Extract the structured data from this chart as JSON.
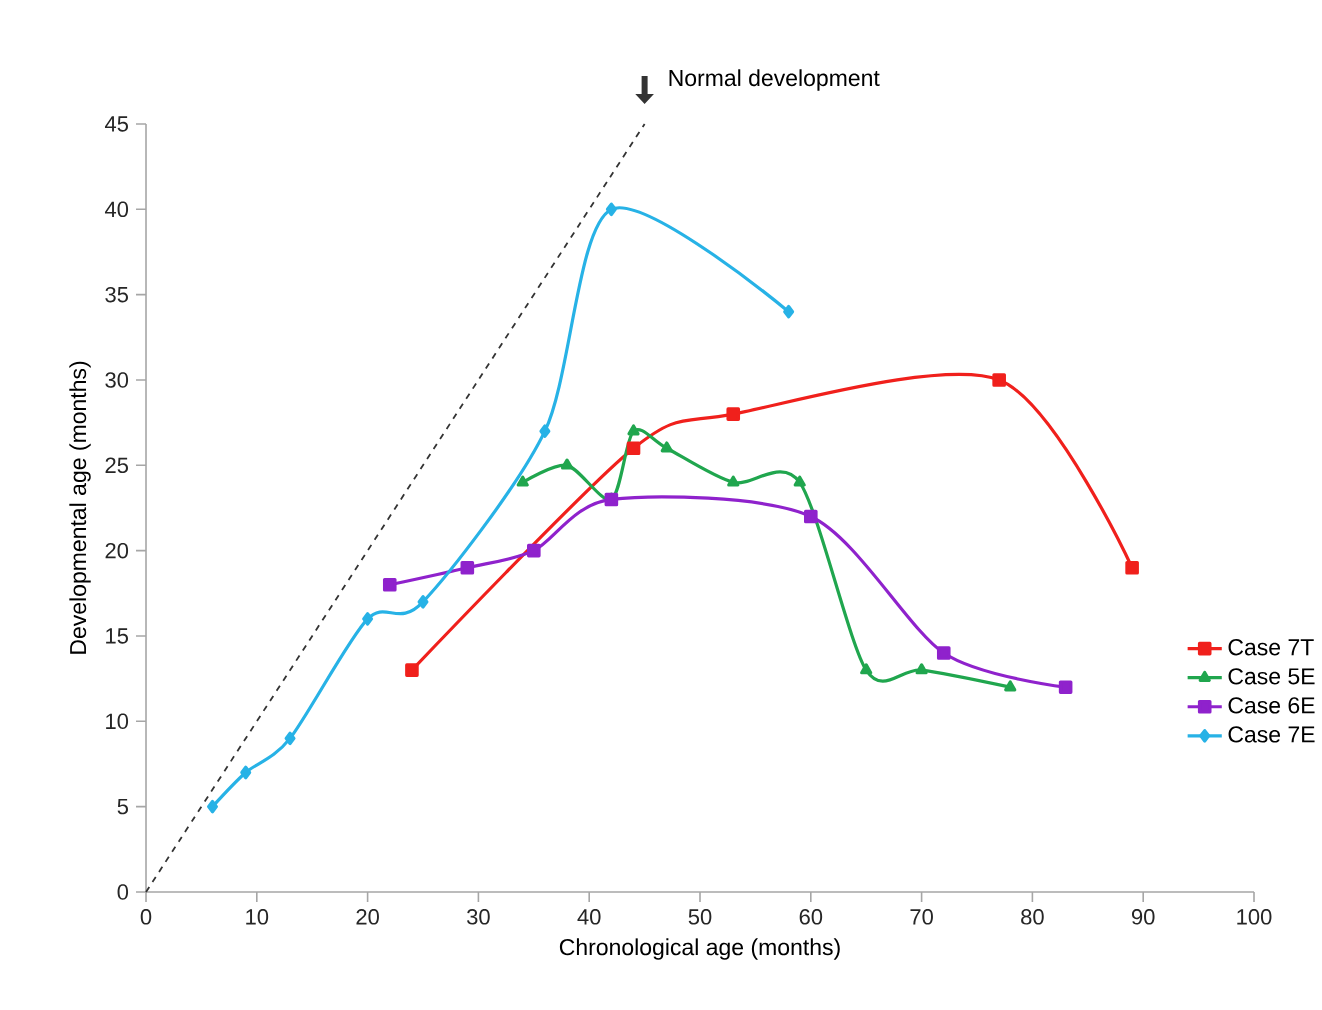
{
  "chart_data": {
    "type": "line",
    "xlabel": "Chronological age (months)",
    "ylabel": "Developmental age (months)",
    "xlim": [
      0,
      100
    ],
    "ylim": [
      0,
      45
    ],
    "xticks": [
      0,
      10,
      20,
      30,
      40,
      50,
      60,
      70,
      80,
      90,
      100
    ],
    "yticks": [
      0,
      5,
      10,
      15,
      20,
      25,
      30,
      35,
      40,
      45
    ],
    "grid": false,
    "legend": "right",
    "series": [
      {
        "name": "Normal development",
        "color": "#333333",
        "x": [
          0,
          45
        ],
        "values": [
          0,
          45
        ],
        "line_style": "dashed",
        "marker": "none"
      },
      {
        "name": "Case 7T",
        "color": "#f0201c",
        "x": [
          24,
          44,
          53,
          77,
          89
        ],
        "values": [
          13,
          26,
          28,
          30,
          19
        ],
        "marker": "square"
      },
      {
        "name": "Case 5E",
        "color": "#20a64e",
        "x": [
          34,
          38,
          42,
          44,
          47,
          53,
          59,
          65,
          70,
          78
        ],
        "values": [
          24,
          25,
          23,
          27,
          26,
          24,
          24,
          13,
          13,
          12
        ],
        "marker": "triangle"
      },
      {
        "name": "Case 6E",
        "color": "#8f22cc",
        "x": [
          22,
          29,
          35,
          42,
          60,
          72,
          83
        ],
        "values": [
          18,
          19,
          20,
          23,
          22,
          14,
          12
        ],
        "marker": "square"
      },
      {
        "name": "Case 7E",
        "color": "#27b2e6",
        "x": [
          6,
          9,
          13,
          20,
          25,
          36,
          42,
          58
        ],
        "values": [
          5,
          7,
          9,
          16,
          17,
          27,
          40,
          34
        ],
        "marker": "diamond"
      }
    ]
  }
}
